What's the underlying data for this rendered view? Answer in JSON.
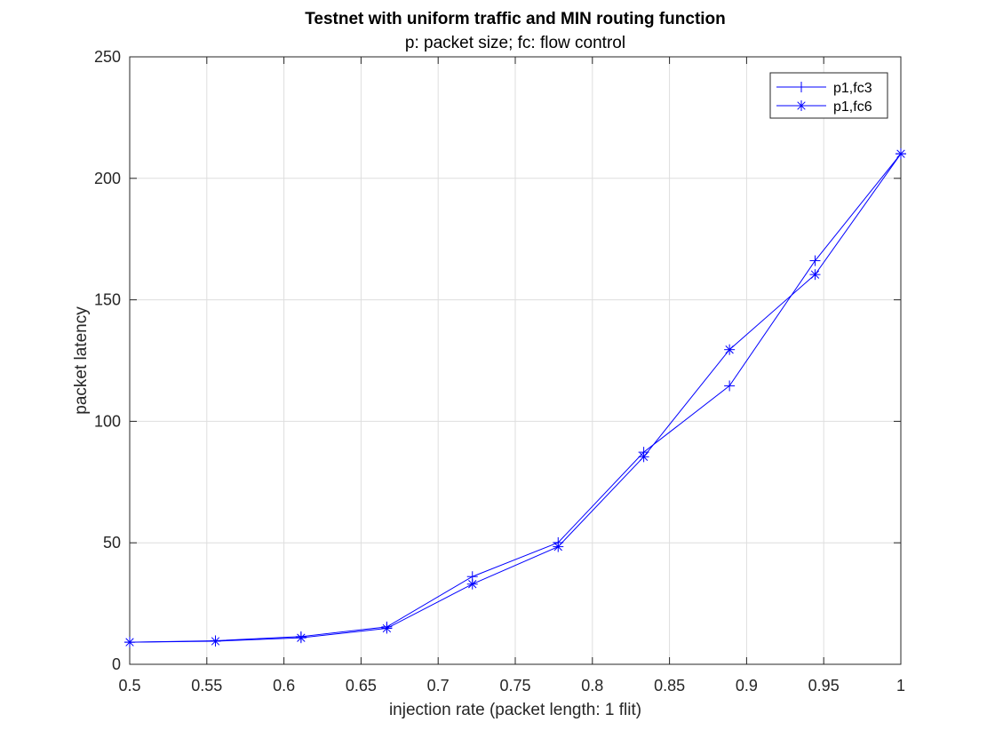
{
  "chart_data": {
    "type": "line",
    "title": "Testnet with uniform traffic and MIN routing function",
    "subtitle": "p: packet size; fc: flow control",
    "xlabel": "injection rate (packet length: 1 flit)",
    "ylabel": "packet latency",
    "xlim": [
      0.5,
      1
    ],
    "ylim": [
      0,
      250
    ],
    "xticks": [
      0.5,
      0.55,
      0.6,
      0.65,
      0.7,
      0.75,
      0.8,
      0.85,
      0.9,
      0.95,
      1
    ],
    "xtick_labels": [
      "0.5",
      "0.55",
      "0.6",
      "0.65",
      "0.7",
      "0.75",
      "0.8",
      "0.85",
      "0.9",
      "0.95",
      "1"
    ],
    "yticks": [
      0,
      50,
      100,
      150,
      200,
      250
    ],
    "ytick_labels": [
      "0",
      "50",
      "100",
      "150",
      "200",
      "250"
    ],
    "grid": true,
    "legend_position": "top-right",
    "x": [
      0.5,
      0.5556,
      0.6111,
      0.6667,
      0.7222,
      0.7778,
      0.8333,
      0.8889,
      0.9444,
      1.0
    ],
    "series": [
      {
        "name": "p1,fc3",
        "marker": "plus",
        "color": "#0000ff",
        "values": [
          9.1,
          9.7,
          11.4,
          15.4,
          36.1,
          50.1,
          87.3,
          114.6,
          166.1,
          210.1
        ]
      },
      {
        "name": "p1,fc6",
        "marker": "asterisk",
        "color": "#0000ff",
        "values": [
          9.1,
          9.5,
          10.9,
          14.8,
          33.0,
          48.4,
          85.4,
          129.5,
          160.4,
          210.1
        ]
      }
    ]
  }
}
